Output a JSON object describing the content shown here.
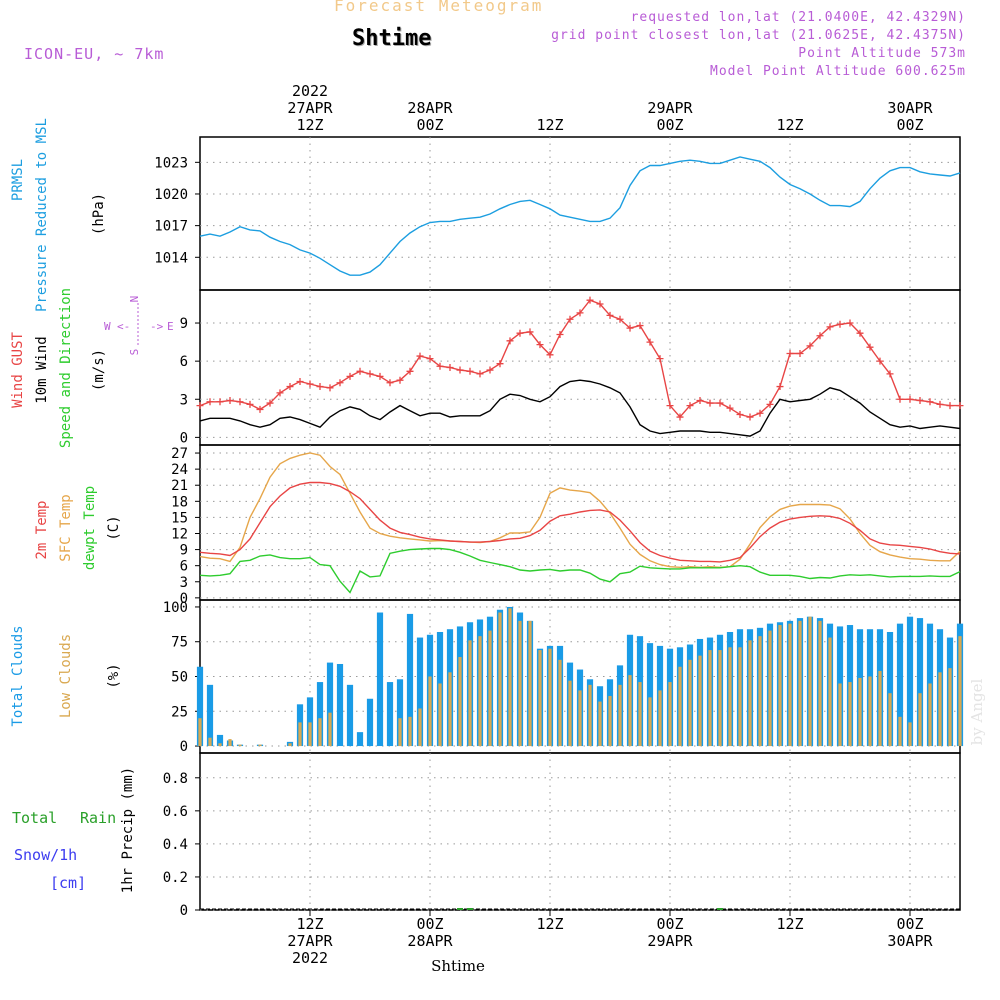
{
  "header": {
    "title": "Forecast Meteogram",
    "location": "Shtime",
    "model": "ICON-EU, ~ 7km",
    "requested": "requested lon,lat (21.0400E, 42.4329N)",
    "gridpoint": "grid point closest lon,lat (21.0625E, 42.4375N)",
    "point_alt": "Point Altitude 573m",
    "model_alt": "Model Point Altitude 600.625m",
    "watermark": "by Angel",
    "footer": "Shtime"
  },
  "time_axis": {
    "start_hour": 0,
    "end_hour": 76,
    "ticks": [
      {
        "h": 11,
        "top": [
          "2022",
          "27APR",
          "12Z"
        ],
        "bottom": [
          "12Z",
          "27APR",
          "2022"
        ]
      },
      {
        "h": 23,
        "top": [
          "28APR",
          "00Z"
        ],
        "bottom": [
          "00Z",
          "28APR"
        ]
      },
      {
        "h": 35,
        "top": [
          "12Z"
        ],
        "bottom": [
          "12Z"
        ]
      },
      {
        "h": 47,
        "top": [
          "29APR",
          "00Z"
        ],
        "bottom": [
          "00Z",
          "29APR"
        ]
      },
      {
        "h": 59,
        "top": [
          "12Z"
        ],
        "bottom": [
          "12Z"
        ]
      },
      {
        "h": 71,
        "top": [
          "30APR",
          "00Z"
        ],
        "bottom": [
          "00Z",
          "30APR"
        ]
      }
    ]
  },
  "colors": {
    "pressure": "#1c9ee0",
    "gust": "#e84545",
    "wind": "#000000",
    "temp": "#e84545",
    "sfc": "#e6a64a",
    "dewpt": "#2ecc2e",
    "total_cloud": "#1a9be6",
    "low_cloud": "#d9a850",
    "rain": "#2aa02a",
    "snow": "#3c3cf0",
    "purple": "#b85cd6",
    "grid": "#9a9a9a"
  },
  "chart_data": [
    {
      "type": "line",
      "ylabels": [
        "PRMSL",
        "Pressure Reduced to MSL",
        "(hPa)"
      ],
      "ticks": [
        1014,
        1017,
        1020,
        1023
      ],
      "ylim": [
        1010.9,
        1025.4
      ],
      "x": [
        0,
        1,
        2,
        3,
        4,
        5,
        6,
        7,
        8,
        9,
        10,
        11,
        12,
        13,
        14,
        15,
        16,
        17,
        18,
        19,
        20,
        21,
        22,
        23,
        24,
        25,
        26,
        27,
        28,
        29,
        30,
        31,
        32,
        33,
        34,
        35,
        36,
        37,
        38,
        39,
        40,
        41,
        42,
        43,
        44,
        45,
        46,
        47,
        48,
        49,
        50,
        51,
        52,
        53,
        54,
        55,
        56,
        57,
        58,
        59,
        60,
        61,
        62,
        63,
        64,
        65,
        66,
        67,
        68,
        69,
        70,
        71,
        72,
        73,
        74,
        75,
        76
      ],
      "series": [
        {
          "name": "PRMSL",
          "values": [
            1016.0,
            1016.2,
            1016.0,
            1016.4,
            1016.9,
            1016.6,
            1016.5,
            1015.9,
            1015.5,
            1015.2,
            1014.7,
            1014.4,
            1013.9,
            1013.3,
            1012.7,
            1012.3,
            1012.3,
            1012.6,
            1013.3,
            1014.4,
            1015.5,
            1016.3,
            1016.9,
            1017.3,
            1017.4,
            1017.4,
            1017.6,
            1017.7,
            1017.8,
            1018.1,
            1018.6,
            1019.0,
            1019.3,
            1019.4,
            1019.0,
            1018.6,
            1018.0,
            1017.8,
            1017.6,
            1017.4,
            1017.4,
            1017.7,
            1018.7,
            1020.8,
            1022.2,
            1022.7,
            1022.7,
            1022.9,
            1023.1,
            1023.2,
            1023.1,
            1022.9,
            1022.9,
            1023.2,
            1023.5,
            1023.3,
            1023.1,
            1022.5,
            1021.6,
            1020.9,
            1020.5,
            1020.0,
            1019.4,
            1018.9,
            1018.9,
            1018.8,
            1019.3,
            1020.5,
            1021.5,
            1022.2,
            1022.5,
            1022.5,
            1022.1,
            1021.9,
            1021.8,
            1021.7,
            1022.0
          ]
        }
      ]
    },
    {
      "type": "line",
      "ylabels": [
        "Wind GUST",
        "10m Wind",
        "Speed and Direction",
        "(m/s)"
      ],
      "compass": {
        "north": "N",
        "south": "S",
        "west": "W",
        "east": "E"
      },
      "ticks": [
        0,
        3,
        6,
        9
      ],
      "ylim": [
        -0.6,
        11.6
      ],
      "series": [
        {
          "name": "Wind GUST",
          "values": [
            2.5,
            2.8,
            2.8,
            2.9,
            2.8,
            2.6,
            2.2,
            2.7,
            3.5,
            4.0,
            4.4,
            4.2,
            4.0,
            3.9,
            4.3,
            4.8,
            5.2,
            5.0,
            4.8,
            4.3,
            4.5,
            5.2,
            6.4,
            6.2,
            5.6,
            5.5,
            5.3,
            5.2,
            5.0,
            5.3,
            5.8,
            7.6,
            8.2,
            8.3,
            7.3,
            6.5,
            8.1,
            9.3,
            9.8,
            10.8,
            10.5,
            9.6,
            9.3,
            8.6,
            8.8,
            7.5,
            6.2,
            2.5,
            1.6,
            2.5,
            2.9,
            2.7,
            2.7,
            2.3,
            1.8,
            1.6,
            1.9,
            2.6,
            4.0,
            6.6,
            6.6,
            7.2,
            8.0,
            8.7,
            8.9,
            9.0,
            8.2,
            7.1,
            6.0,
            5.0,
            3.0,
            3.0,
            2.9,
            2.8,
            2.6,
            2.5,
            2.5
          ]
        },
        {
          "name": "10m Wind",
          "values": [
            1.3,
            1.5,
            1.5,
            1.5,
            1.3,
            1.0,
            0.8,
            1.0,
            1.5,
            1.6,
            1.4,
            1.1,
            0.8,
            1.6,
            2.1,
            2.4,
            2.2,
            1.7,
            1.4,
            2.0,
            2.5,
            2.1,
            1.7,
            1.9,
            1.9,
            1.6,
            1.7,
            1.7,
            1.7,
            2.1,
            3.0,
            3.4,
            3.3,
            3.0,
            2.8,
            3.2,
            4.0,
            4.4,
            4.5,
            4.4,
            4.2,
            3.9,
            3.5,
            2.4,
            1.0,
            0.5,
            0.3,
            0.4,
            0.5,
            0.5,
            0.5,
            0.4,
            0.4,
            0.3,
            0.2,
            0.1,
            0.5,
            1.9,
            3.0,
            2.8,
            2.9,
            3.0,
            3.4,
            3.9,
            3.7,
            3.2,
            2.7,
            2.0,
            1.5,
            1.0,
            0.8,
            0.9,
            0.7,
            0.8,
            0.9,
            0.8,
            0.7
          ]
        }
      ]
    },
    {
      "type": "line",
      "ylabels": [
        "2m Temp",
        "SFC Temp",
        "dewpt Temp",
        "(C)"
      ],
      "ticks": [
        0,
        3,
        6,
        9,
        12,
        15,
        18,
        21,
        24,
        27
      ],
      "ylim": [
        -0.4,
        28.5
      ],
      "series": [
        {
          "name": "2m Temp",
          "values": [
            8.5,
            8.3,
            8.2,
            7.9,
            9.0,
            11.0,
            14.0,
            17.0,
            19.0,
            20.5,
            21.2,
            21.5,
            21.5,
            21.3,
            20.8,
            19.8,
            18.5,
            16.5,
            14.5,
            13.0,
            12.2,
            11.8,
            11.3,
            11.0,
            10.8,
            10.6,
            10.5,
            10.4,
            10.4,
            10.5,
            10.7,
            11.0,
            11.1,
            11.6,
            12.6,
            14.3,
            15.3,
            15.6,
            16.0,
            16.3,
            16.4,
            16.0,
            14.5,
            12.5,
            10.3,
            8.7,
            7.9,
            7.4,
            7.0,
            6.9,
            6.8,
            6.8,
            6.7,
            7.0,
            7.5,
            9.3,
            11.4,
            13.0,
            14.1,
            14.7,
            15.0,
            15.2,
            15.3,
            15.2,
            14.8,
            13.9,
            12.6,
            11.0,
            10.2,
            9.9,
            9.8,
            9.6,
            9.4,
            9.1,
            8.6,
            8.3,
            8.2
          ]
        },
        {
          "name": "SFC Temp",
          "values": [
            7.7,
            7.4,
            7.3,
            6.8,
            9.4,
            15.0,
            18.5,
            22.5,
            25.0,
            26.0,
            26.6,
            27.0,
            26.6,
            24.5,
            23.0,
            19.5,
            16.0,
            13.0,
            12.0,
            11.5,
            11.2,
            11.0,
            10.8,
            10.6,
            10.7,
            10.6,
            10.5,
            10.4,
            10.3,
            10.5,
            11.2,
            12.1,
            12.1,
            12.3,
            15.0,
            19.5,
            20.5,
            20.1,
            19.9,
            19.6,
            18.0,
            15.8,
            13.0,
            10.0,
            8.1,
            6.9,
            6.2,
            5.8,
            5.7,
            5.8,
            5.7,
            5.8,
            5.7,
            5.8,
            7.2,
            10.0,
            13.1,
            15.1,
            16.5,
            17.1,
            17.4,
            17.4,
            17.4,
            17.3,
            16.6,
            14.7,
            12.0,
            9.8,
            8.6,
            8.0,
            7.6,
            7.3,
            7.2,
            7.0,
            6.9,
            6.9,
            8.7
          ]
        },
        {
          "name": "dewpt Temp",
          "values": [
            4.2,
            4.1,
            4.2,
            4.5,
            6.8,
            7.0,
            7.8,
            8.0,
            7.5,
            7.3,
            7.3,
            7.5,
            6.2,
            6.0,
            3.1,
            1.0,
            5.0,
            3.9,
            4.1,
            8.3,
            8.7,
            9.0,
            9.1,
            9.2,
            9.2,
            9.0,
            8.5,
            7.8,
            7.0,
            6.6,
            6.2,
            5.8,
            5.2,
            5.0,
            5.2,
            5.3,
            5.0,
            5.2,
            5.2,
            4.6,
            3.5,
            3.0,
            4.5,
            4.8,
            5.9,
            5.6,
            5.5,
            5.4,
            5.4,
            5.6,
            5.6,
            5.6,
            5.6,
            5.8,
            6.0,
            5.8,
            4.8,
            4.2,
            4.2,
            4.2,
            4.0,
            3.6,
            3.8,
            3.7,
            4.1,
            4.3,
            4.2,
            4.3,
            4.1,
            3.9,
            4.0,
            4.0,
            4.0,
            4.1,
            4.0,
            4.0,
            4.9
          ]
        }
      ]
    },
    {
      "type": "bar",
      "ylabels": [
        "Total Clouds",
        "Low Clouds",
        "(%)"
      ],
      "ticks": [
        0,
        25,
        50,
        75,
        100
      ],
      "ylim": [
        -5,
        105
      ],
      "series": [
        {
          "name": "Total Clouds",
          "values": [
            57,
            44,
            8,
            4,
            1,
            0,
            1,
            0,
            0,
            3,
            30,
            35,
            46,
            60,
            59,
            44,
            10,
            34,
            96,
            46,
            48,
            95,
            78,
            80,
            82,
            84,
            86,
            89,
            91,
            93,
            98,
            100,
            96,
            90,
            70,
            72,
            72,
            60,
            55,
            48,
            43,
            48,
            58,
            80,
            79,
            74,
            72,
            70,
            71,
            73,
            77,
            78,
            80,
            82,
            84,
            84,
            85,
            88,
            89,
            90,
            92,
            93,
            92,
            88,
            86,
            87,
            84,
            84,
            84,
            82,
            88,
            93,
            92,
            88,
            84,
            78,
            88
          ]
        },
        {
          "name": "Low Clouds",
          "values": [
            20,
            6,
            2,
            5,
            1,
            0,
            1,
            0,
            0,
            2,
            17,
            17,
            20,
            24,
            0,
            0,
            0,
            0,
            0,
            0,
            20,
            21,
            27,
            50,
            45,
            53,
            64,
            76,
            79,
            83,
            96,
            99,
            90,
            90,
            69,
            70,
            62,
            47,
            40,
            44,
            32,
            36,
            44,
            51,
            46,
            35,
            40,
            46,
            57,
            62,
            65,
            69,
            69,
            71,
            71,
            76,
            79,
            83,
            87,
            88,
            90,
            93,
            90,
            78,
            45,
            46,
            49,
            50,
            54,
            38,
            21,
            17,
            38,
            45,
            53,
            56,
            79
          ]
        }
      ]
    },
    {
      "type": "bar",
      "ylabels": [
        "1hr Precip (mm)"
      ],
      "side_labels": [
        "Total",
        "Rain",
        "Snow/1h",
        "[cm]"
      ],
      "ticks": [
        0,
        0.2,
        0.4,
        0.6,
        0.8
      ],
      "ylim": [
        0,
        0.95
      ],
      "series": [
        {
          "name": "Total Rain",
          "values": [
            0,
            0,
            0,
            0,
            0,
            0,
            0,
            0,
            0,
            0,
            0,
            0,
            0,
            0,
            0,
            0,
            0,
            0,
            0,
            0,
            0,
            0,
            0,
            0,
            0,
            0,
            0.005,
            0.01,
            0,
            0,
            0,
            0,
            0,
            0,
            0,
            0,
            0,
            0,
            0,
            0,
            0,
            0,
            0,
            0,
            0,
            0,
            0,
            0,
            0,
            0,
            0,
            0,
            0.003,
            0,
            0,
            0,
            0,
            0,
            0,
            0,
            0,
            0,
            0,
            0,
            0,
            0,
            0,
            0,
            0,
            0,
            0,
            0,
            0,
            0,
            0,
            0,
            0
          ]
        }
      ]
    }
  ]
}
